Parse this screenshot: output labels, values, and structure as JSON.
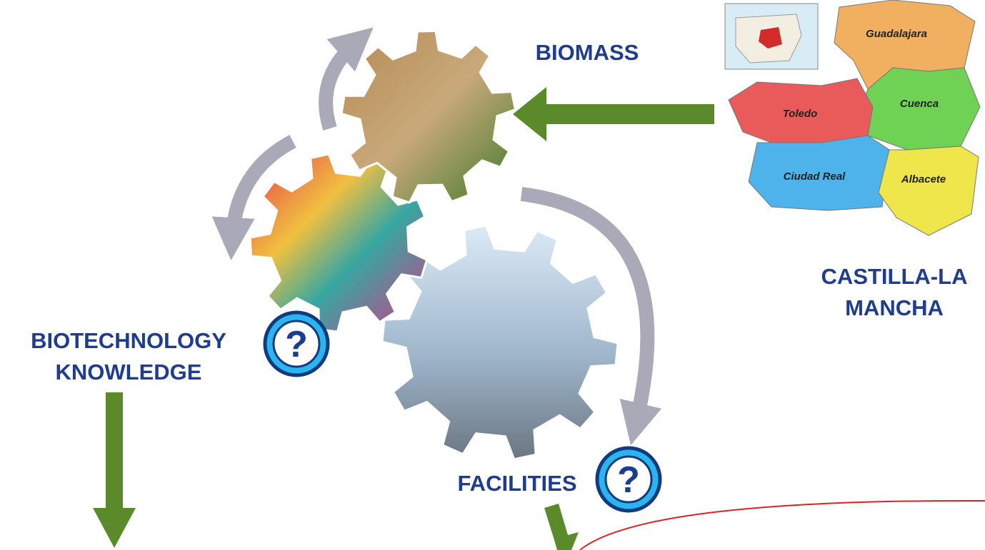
{
  "labels": {
    "biomass": "BIOMASS",
    "biotechnology": [
      "BIOTECHNOLOGY",
      "KNOWLEDGE"
    ],
    "facilities": "FACILITIES",
    "region": [
      "CASTILLA-LA",
      "MANCHA"
    ]
  },
  "map": {
    "provinces": [
      "Guadalajara",
      "Cuenca",
      "Toledo",
      "Ciudad Real",
      "Albacete"
    ]
  },
  "question_marks": [
    "?",
    "?"
  ]
}
